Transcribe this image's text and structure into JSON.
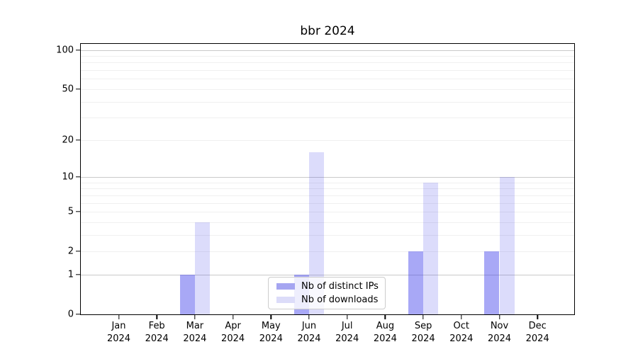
{
  "chart_data": {
    "type": "bar",
    "title": "bbr 2024",
    "xlabel": "",
    "ylabel": "",
    "categories": [
      "Jan 2024",
      "Feb 2024",
      "Mar 2024",
      "Apr 2024",
      "May 2024",
      "Jun 2024",
      "Jul 2024",
      "Aug 2024",
      "Sep 2024",
      "Oct 2024",
      "Nov 2024",
      "Dec 2024"
    ],
    "series": [
      {
        "name": "Nb of distinct IPs",
        "color": "#a5a5f1",
        "color_rgba": "rgba(62,62,235,0.45)",
        "values": [
          0,
          0,
          1,
          0,
          0,
          1,
          0,
          0,
          2,
          0,
          2,
          0
        ]
      },
      {
        "name": "Nb of downloads",
        "color": "#dcdcf9",
        "color_rgba": "rgba(62,62,235,0.18)",
        "values": [
          0,
          0,
          4,
          0,
          0,
          16,
          0,
          0,
          9,
          0,
          10,
          0
        ]
      }
    ],
    "yscale": "log1p",
    "yticks": [
      0,
      1,
      2,
      5,
      10,
      20,
      50,
      100
    ],
    "major_gridlines": [
      1,
      10,
      100
    ],
    "minor_gridlines": [
      2,
      3,
      4,
      5,
      6,
      7,
      8,
      9,
      20,
      30,
      40,
      50,
      60,
      70,
      80,
      90
    ],
    "ylim": [
      0,
      111
    ],
    "grid": true,
    "legend_position": "lower center (inside plot)"
  },
  "colors": {
    "axis": "#000000",
    "major_grid": "#c9c9c9",
    "minor_grid": "#f0f0f0",
    "legend_border": "#cccccc",
    "background": "#ffffff",
    "text": "#000000"
  }
}
